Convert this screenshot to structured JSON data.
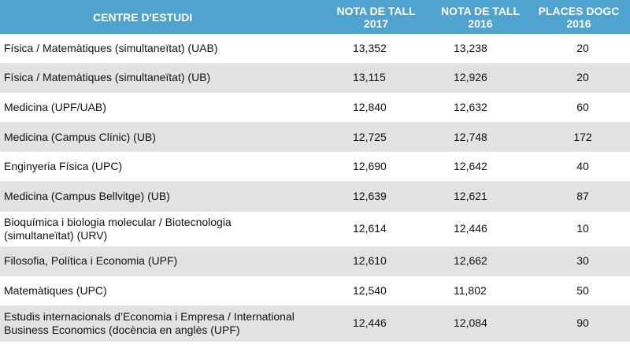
{
  "header": {
    "col1": "CENTRE D'ESTUDI",
    "col2_line1": "NOTA DE TALL",
    "col2_line2": "2017",
    "col3_line1": "NOTA DE TALL",
    "col3_line2": "2016",
    "col4_line1": "PLACES DOGC",
    "col4_line2": "2016"
  },
  "rows": [
    {
      "centre": "Física / Matemàtiques (simultaneïtat) (UAB)",
      "nota2017": "13,352",
      "nota2016": "13,238",
      "places": "20"
    },
    {
      "centre": "Física / Matemàtiques (simultaneïtat) (UB)",
      "nota2017": "13,115",
      "nota2016": "12,926",
      "places": "20"
    },
    {
      "centre": "Medicina (UPF/UAB)",
      "nota2017": "12,840",
      "nota2016": "12,632",
      "places": "60"
    },
    {
      "centre": "Medicina (Campus Clínic) (UB)",
      "nota2017": "12,725",
      "nota2016": "12,748",
      "places": "172"
    },
    {
      "centre": "Enginyeria Física (UPC)",
      "nota2017": "12,690",
      "nota2016": "12,642",
      "places": "40"
    },
    {
      "centre": "Medicina (Campus Bellvitge) (UB)",
      "nota2017": "12,639",
      "nota2016": "12,621",
      "places": "87"
    },
    {
      "centre_line1": "Bioquímica i biologia molecular / Biotecnologia",
      "centre_line2": "(simultaneïtat) (URV)",
      "nota2017": "12,614",
      "nota2016": "12,446",
      "places": "10"
    },
    {
      "centre": "Filosofia, Política i Economia (UPF)",
      "nota2017": "12,610",
      "nota2016": "12,662",
      "places": "30"
    },
    {
      "centre": "Matemàtiques (UPC)",
      "nota2017": "12,540",
      "nota2016": "11,802",
      "places": "50"
    },
    {
      "centre_line1": "Estudis internacionals d’Economia i Empresa / International",
      "centre_line2": "Business Economics (docència en anglès (UPF)",
      "nota2017": "12,446",
      "nota2016": "12,084",
      "places": "90"
    }
  ]
}
